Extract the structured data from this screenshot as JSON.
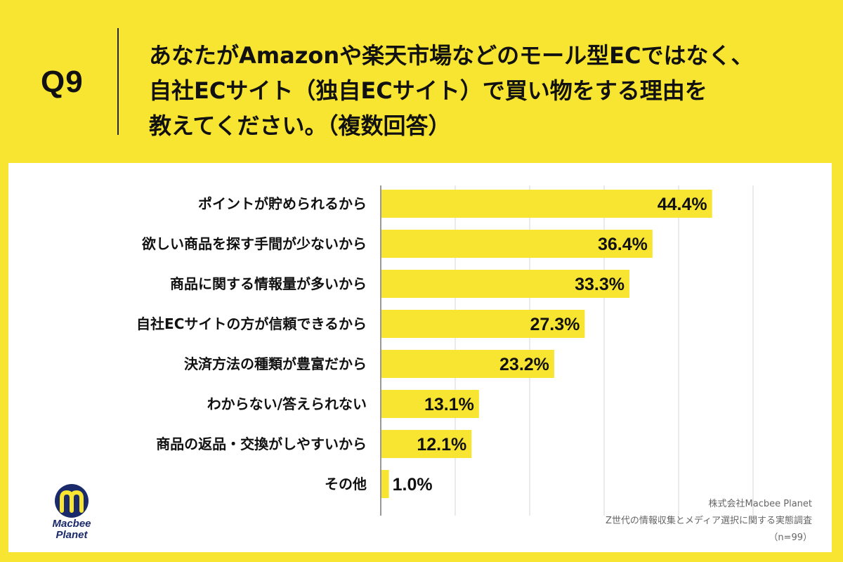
{
  "header": {
    "question_number": "Q9",
    "question_lines": [
      "あなたがAmazonや楽天市場などのモール型ECではなく、",
      "自社ECサイト（独自ECサイト）で買い物をする理由を",
      "教えてください。（複数回答）"
    ]
  },
  "colors": {
    "background": "#F8E531",
    "bar": "#F8E531",
    "panel": "#FFFFFF",
    "grid": "#D6D6D6"
  },
  "chart_data": {
    "type": "bar",
    "orientation": "horizontal",
    "title": "",
    "xlabel": "",
    "ylabel": "",
    "xlim": [
      0,
      50
    ],
    "grid": true,
    "categories": [
      "ポイントが貯められるから",
      "欲しい商品を探す手間が少ないから",
      "商品に関する情報量が多いから",
      "自社ECサイトの方が信頼できるから",
      "決済方法の種類が豊富だから",
      "わからない/答えられない",
      "商品の返品・交換がしやすいから",
      "その他"
    ],
    "values": [
      44.4,
      36.4,
      33.3,
      27.3,
      23.2,
      13.1,
      12.1,
      1.0
    ],
    "value_labels": [
      "44.4%",
      "36.4%",
      "33.3%",
      "27.3%",
      "23.2%",
      "13.1%",
      "12.1%",
      "1.0%"
    ]
  },
  "logo": {
    "icon": "macbee-planet-logo-icon",
    "line1": "Macbee",
    "line2": "Planet"
  },
  "credit": {
    "company": "株式会社Macbee Planet",
    "survey": "Z世代の情報収集とメディア選択に関する実態調査",
    "sample": "（n=99）"
  }
}
